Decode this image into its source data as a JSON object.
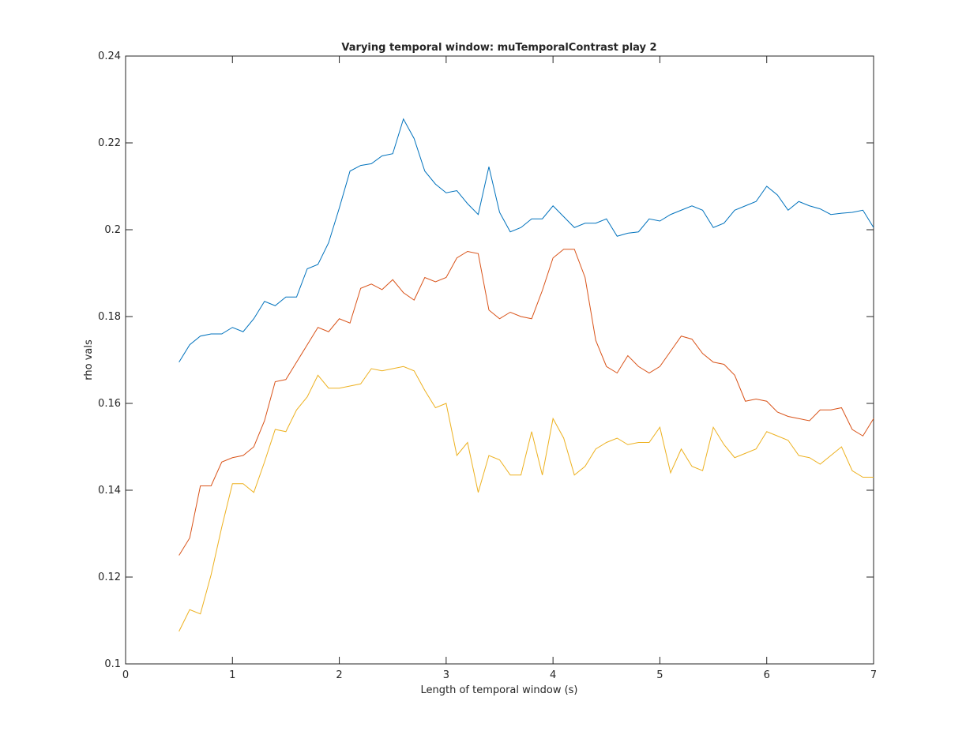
{
  "chart_data": {
    "type": "line",
    "title": "Varying temporal window: muTemporalContrast play 2",
    "x_label": "Length of temporal window (s)",
    "y_label": "rho vals",
    "x": [
      0.5,
      0.6,
      0.7,
      0.8,
      0.9,
      1.0,
      1.1,
      1.2,
      1.3,
      1.4,
      1.5,
      1.6,
      1.7,
      1.8,
      1.9,
      2.0,
      2.1,
      2.2,
      2.3,
      2.4,
      2.5,
      2.6,
      2.7,
      2.8,
      2.9,
      3.0,
      3.1,
      3.2,
      3.3,
      3.4,
      3.5,
      3.6,
      3.7,
      3.8,
      3.9,
      4.0,
      4.1,
      4.2,
      4.3,
      4.4,
      4.5,
      4.6,
      4.7,
      4.8,
      4.9,
      5.0,
      5.1,
      5.2,
      5.3,
      5.4,
      5.5,
      5.6,
      5.7,
      5.8,
      5.9,
      6.0,
      6.1,
      6.2,
      6.3,
      6.4,
      6.5,
      6.6,
      6.7,
      6.8,
      6.9,
      7.0
    ],
    "series": [
      {
        "color": "#0072BD",
        "values": [
          0.1695,
          0.1735,
          0.1755,
          0.176,
          0.176,
          0.1775,
          0.1765,
          0.1795,
          0.1835,
          0.1825,
          0.1845,
          0.1845,
          0.191,
          0.192,
          0.197,
          0.205,
          0.2135,
          0.2148,
          0.2152,
          0.217,
          0.2175,
          0.2255,
          0.221,
          0.2135,
          0.2105,
          0.2085,
          0.209,
          0.206,
          0.2035,
          0.2145,
          0.204,
          0.1995,
          0.2005,
          0.2025,
          0.2025,
          0.2055,
          0.203,
          0.2005,
          0.2015,
          0.2015,
          0.2025,
          0.1985,
          0.1992,
          0.1995,
          0.2025,
          0.202,
          0.2035,
          0.2045,
          0.2055,
          0.2045,
          0.2005,
          0.2015,
          0.2045,
          0.2055,
          0.2065,
          0.21,
          0.208,
          0.2045,
          0.2065,
          0.2055,
          0.2048,
          0.2035,
          0.2038,
          0.204,
          0.2045,
          0.2005
        ]
      },
      {
        "color": "#D95319",
        "values": [
          0.125,
          0.129,
          0.141,
          0.141,
          0.1465,
          0.1475,
          0.148,
          0.15,
          0.156,
          0.165,
          0.1655,
          0.1695,
          0.1735,
          0.1775,
          0.1765,
          0.1795,
          0.1785,
          0.1865,
          0.1875,
          0.1862,
          0.1885,
          0.1855,
          0.1838,
          0.189,
          0.188,
          0.189,
          0.1935,
          0.195,
          0.1945,
          0.1815,
          0.1795,
          0.181,
          0.18,
          0.1795,
          0.186,
          0.1935,
          0.1955,
          0.1955,
          0.189,
          0.1745,
          0.1685,
          0.167,
          0.171,
          0.1685,
          0.167,
          0.1685,
          0.172,
          0.1755,
          0.1748,
          0.1715,
          0.1695,
          0.169,
          0.1665,
          0.1605,
          0.161,
          0.1605,
          0.158,
          0.157,
          0.1565,
          0.156,
          0.1585,
          0.1585,
          0.159,
          0.154,
          0.1525,
          0.1565
        ]
      },
      {
        "color": "#EDB120",
        "values": [
          0.1075,
          0.1125,
          0.1115,
          0.1205,
          0.1315,
          0.1415,
          0.1415,
          0.1395,
          0.1465,
          0.154,
          0.1535,
          0.1585,
          0.1615,
          0.1665,
          0.1635,
          0.1635,
          0.164,
          0.1645,
          0.168,
          0.1675,
          0.168,
          0.1685,
          0.1675,
          0.163,
          0.159,
          0.16,
          0.148,
          0.151,
          0.1395,
          0.148,
          0.147,
          0.1435,
          0.1435,
          0.1535,
          0.1435,
          0.1565,
          0.152,
          0.1435,
          0.1455,
          0.1495,
          0.151,
          0.152,
          0.1505,
          0.151,
          0.151,
          0.1545,
          0.144,
          0.1495,
          0.1455,
          0.1445,
          0.1545,
          0.1505,
          0.1475,
          0.1485,
          0.1495,
          0.1535,
          0.1525,
          0.1515,
          0.148,
          0.1475,
          0.146,
          0.148,
          0.15,
          0.1445,
          0.143,
          0.143
        ]
      }
    ],
    "xlim": [
      0,
      7
    ],
    "xticks": [
      0,
      1,
      2,
      3,
      4,
      5,
      6,
      7
    ],
    "ylim": [
      0.1,
      0.24
    ],
    "yticks": [
      0.1,
      0.12,
      0.14,
      0.16,
      0.18,
      0.2,
      0.22,
      0.24
    ]
  }
}
